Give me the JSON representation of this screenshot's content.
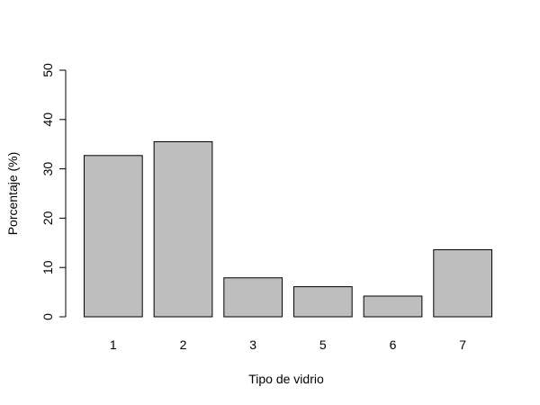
{
  "chart_data": {
    "type": "bar",
    "categories": [
      "1",
      "2",
      "3",
      "5",
      "6",
      "7"
    ],
    "values": [
      32.7,
      35.5,
      7.9,
      6.1,
      4.2,
      13.6
    ],
    "title": "",
    "xlabel": "Tipo de vidrio",
    "ylabel": "Porcentaje (%)",
    "ylim": [
      0,
      50
    ],
    "y_ticks": [
      "0",
      "10",
      "20",
      "30",
      "40",
      "50"
    ],
    "grid": false,
    "bar_color": "#bebebe",
    "bar_border_color": "#000000"
  }
}
